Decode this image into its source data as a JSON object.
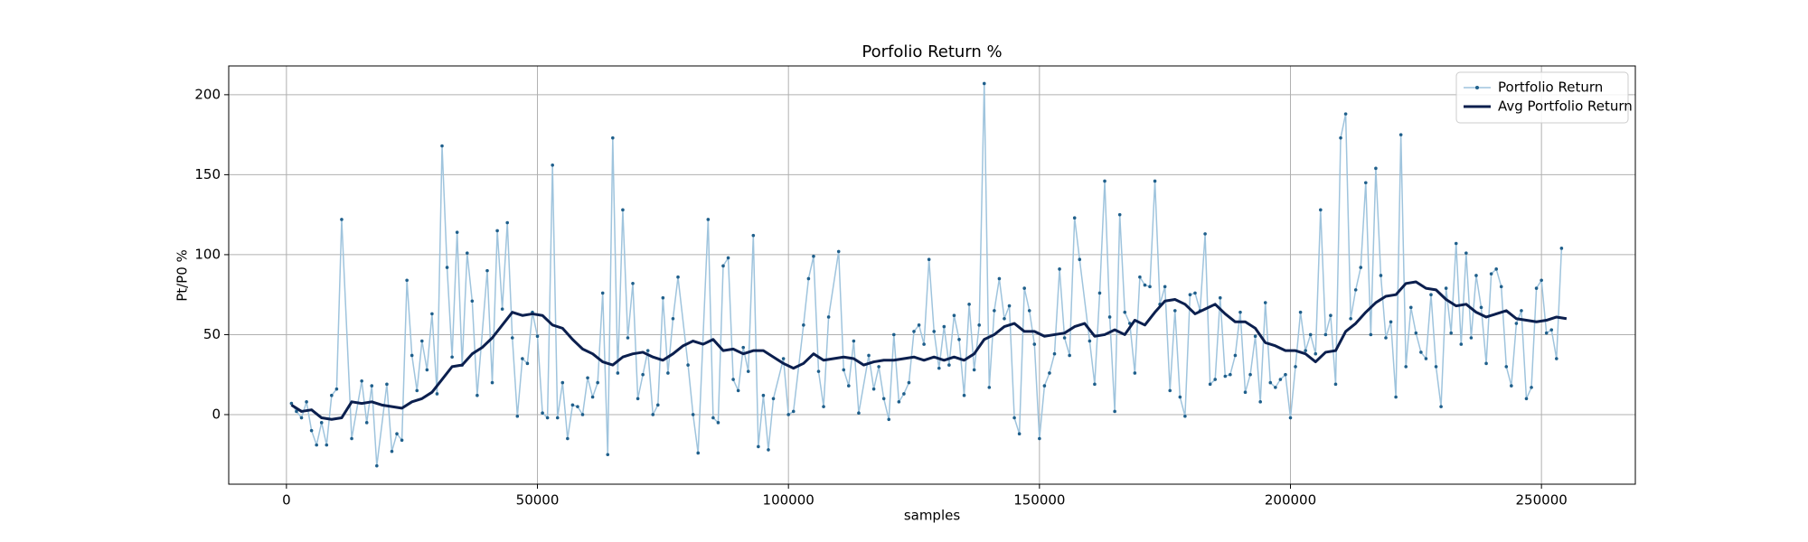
{
  "chart_data": {
    "type": "line",
    "title": "Porfolio Return %",
    "xlabel": "samples",
    "ylabel": "Pt/P0 %",
    "xlim": [
      -11500,
      268700
    ],
    "ylim": [
      -43.5,
      218
    ],
    "xticks": [
      0,
      50000,
      100000,
      150000,
      200000,
      250000
    ],
    "yticks": [
      0,
      50,
      100,
      150,
      200
    ],
    "grid": true,
    "legend": "upper right",
    "series": [
      {
        "name": "Portfolio Return",
        "color": "#9fc4dd",
        "marker_color": "#1f5f8b",
        "marker": true,
        "width": 1.5,
        "x": [
          1000,
          2000,
          3000,
          4000,
          5000,
          6000,
          7000,
          8000,
          9000,
          10000,
          11000,
          13000,
          15000,
          16000,
          17000,
          18000,
          20000,
          21000,
          22000,
          23000,
          24000,
          25000,
          26000,
          27000,
          28000,
          29000,
          30000,
          31000,
          32000,
          33000,
          34000,
          35000,
          36000,
          37000,
          38000,
          40000,
          41000,
          42000,
          43000,
          44000,
          45000,
          46000,
          47000,
          48000,
          49000,
          50000,
          51000,
          52000,
          53000,
          54000,
          55000,
          56000,
          57000,
          58000,
          59000,
          60000,
          61000,
          62000,
          63000,
          64000,
          65000,
          66000,
          67000,
          68000,
          69000,
          70000,
          71000,
          72000,
          73000,
          74000,
          75000,
          76000,
          77000,
          78000,
          80000,
          81000,
          82000,
          84000,
          85000,
          86000,
          87000,
          88000,
          89000,
          90000,
          91000,
          92000,
          93000,
          94000,
          95000,
          96000,
          97000,
          99000,
          100000,
          101000,
          103000,
          104000,
          105000,
          106000,
          107000,
          108000,
          110000,
          111000,
          112000,
          113000,
          114000,
          116000,
          117000,
          118000,
          119000,
          120000,
          121000,
          122000,
          123000,
          124000,
          125000,
          126000,
          127000,
          128000,
          129000,
          130000,
          131000,
          132000,
          133000,
          134000,
          135000,
          136000,
          137000,
          138000,
          139000,
          140000,
          141000,
          142000,
          143000,
          144000,
          145000,
          146000,
          147000,
          148000,
          149000,
          150000,
          151000,
          152000,
          153000,
          154000,
          155000,
          156000,
          157000,
          158000,
          160000,
          161000,
          162000,
          163000,
          164000,
          165000,
          166000,
          167000,
          168000,
          169000,
          170000,
          171000,
          172000,
          173000,
          174000,
          175000,
          176000,
          177000,
          178000,
          179000,
          180000,
          181000,
          182000,
          183000,
          184000,
          185000,
          186000,
          187000,
          188000,
          189000,
          190000,
          191000,
          192000,
          193000,
          194000,
          195000,
          196000,
          197000,
          198000,
          199000,
          200000,
          201000,
          202000,
          203000,
          204000,
          205000,
          206000,
          207000,
          208000,
          209000,
          210000,
          211000,
          212000,
          213000,
          214000,
          215000,
          216000,
          217000,
          218000,
          219000,
          220000,
          221000,
          222000,
          223000,
          224000,
          225000,
          226000,
          227000,
          228000,
          229000,
          230000,
          231000,
          232000,
          233000,
          234000,
          235000,
          236000,
          237000,
          238000,
          239000,
          240000,
          241000,
          242000,
          243000,
          244000,
          245000,
          246000,
          247000,
          248000,
          249000,
          250000,
          251000,
          252000,
          253000,
          254000
        ],
        "values": [
          7,
          2,
          -2,
          8,
          -10,
          -19,
          -5,
          -19,
          12,
          16,
          122,
          -15,
          21,
          -5,
          18,
          -32,
          19,
          -23,
          -12,
          -16,
          84,
          37,
          15,
          46,
          28,
          63,
          13,
          168,
          92,
          36,
          114,
          31,
          101,
          71,
          12,
          90,
          20,
          115,
          66,
          120,
          48,
          -1,
          35,
          32,
          64,
          49,
          1,
          -2,
          156,
          -2,
          20,
          -15,
          6,
          5,
          0,
          23,
          11,
          20,
          76,
          -25,
          173,
          26,
          128,
          48,
          82,
          10,
          25,
          40,
          0,
          6,
          73,
          26,
          60,
          86,
          31,
          0,
          -24,
          122,
          -2,
          -5,
          93,
          98,
          22,
          15,
          42,
          27,
          112,
          -20,
          12,
          -22,
          10,
          35,
          0,
          2,
          56,
          85,
          99,
          27,
          5,
          61,
          102,
          28,
          18,
          46,
          1,
          37,
          16,
          30,
          10,
          -3,
          50,
          8,
          13,
          20,
          52,
          56,
          44,
          97,
          52,
          29,
          55,
          31,
          62,
          47,
          12,
          69,
          28,
          56,
          207,
          17,
          65,
          85,
          60,
          68,
          -2,
          -12,
          79,
          65,
          44,
          -15,
          18,
          26,
          38,
          91,
          48,
          37,
          123,
          97,
          46,
          19,
          76,
          146,
          61,
          2,
          125,
          64,
          57,
          26,
          86,
          81,
          80,
          146,
          69,
          80,
          15,
          65,
          11,
          -1,
          75,
          76,
          65,
          113,
          19,
          22,
          73,
          24,
          25,
          37,
          64,
          14,
          25,
          49,
          8,
          70,
          20,
          17,
          22,
          25,
          -2,
          30,
          64,
          40,
          50,
          38,
          128,
          50,
          62,
          19,
          173,
          188,
          60,
          78,
          92,
          145,
          50,
          154,
          87,
          48,
          58,
          11,
          175,
          30,
          67,
          51,
          39,
          35,
          75,
          30,
          5,
          79,
          51,
          107,
          44,
          101,
          48,
          87,
          67,
          32,
          88,
          91,
          80,
          30,
          18,
          57,
          65,
          10,
          17,
          79,
          84,
          51,
          53,
          35,
          104
        ]
      },
      {
        "name": "Avg Portfolio Return",
        "color": "#0b1f4e",
        "marker": false,
        "width": 3,
        "x": [
          1000,
          3000,
          5000,
          7000,
          9000,
          11000,
          13000,
          15000,
          17000,
          19000,
          21000,
          23000,
          25000,
          27000,
          29000,
          31000,
          33000,
          35000,
          37000,
          39000,
          41000,
          43000,
          45000,
          47000,
          49000,
          51000,
          53000,
          55000,
          57000,
          59000,
          61000,
          63000,
          65000,
          67000,
          69000,
          71000,
          73000,
          75000,
          77000,
          79000,
          81000,
          83000,
          85000,
          87000,
          89000,
          91000,
          93000,
          95000,
          97000,
          99000,
          101000,
          103000,
          105000,
          107000,
          109000,
          111000,
          113000,
          115000,
          117000,
          119000,
          121000,
          123000,
          125000,
          127000,
          129000,
          131000,
          133000,
          135000,
          137000,
          139000,
          141000,
          143000,
          145000,
          147000,
          149000,
          151000,
          153000,
          155000,
          157000,
          159000,
          161000,
          163000,
          165000,
          167000,
          169000,
          171000,
          173000,
          175000,
          177000,
          179000,
          181000,
          183000,
          185000,
          187000,
          189000,
          191000,
          193000,
          195000,
          197000,
          199000,
          201000,
          203000,
          205000,
          207000,
          209000,
          211000,
          213000,
          215000,
          217000,
          219000,
          221000,
          223000,
          225000,
          227000,
          229000,
          231000,
          233000,
          235000,
          237000,
          239000,
          241000,
          243000,
          245000,
          247000,
          249000,
          251000,
          253000,
          255000
        ],
        "values": [
          6,
          2,
          3,
          -2,
          -3,
          -2,
          8,
          7,
          8,
          6,
          5,
          4,
          8,
          10,
          14,
          22,
          30,
          31,
          38,
          42,
          48,
          56,
          64,
          62,
          63,
          62,
          56,
          54,
          47,
          41,
          38,
          33,
          31,
          36,
          38,
          39,
          36,
          34,
          38,
          43,
          46,
          44,
          47,
          40,
          41,
          38,
          40,
          40,
          36,
          32,
          29,
          32,
          38,
          34,
          35,
          36,
          35,
          31,
          33,
          34,
          34,
          35,
          36,
          34,
          36,
          34,
          36,
          34,
          38,
          47,
          50,
          55,
          57,
          52,
          52,
          49,
          50,
          51,
          55,
          57,
          49,
          50,
          53,
          50,
          59,
          56,
          64,
          71,
          72,
          69,
          63,
          66,
          69,
          63,
          58,
          58,
          54,
          45,
          43,
          40,
          40,
          38,
          33,
          39,
          40,
          52,
          57,
          64,
          70,
          74,
          75,
          82,
          83,
          79,
          78,
          72,
          68,
          69,
          64,
          61,
          63,
          65,
          60,
          59,
          58,
          59,
          61,
          60
        ]
      }
    ]
  }
}
